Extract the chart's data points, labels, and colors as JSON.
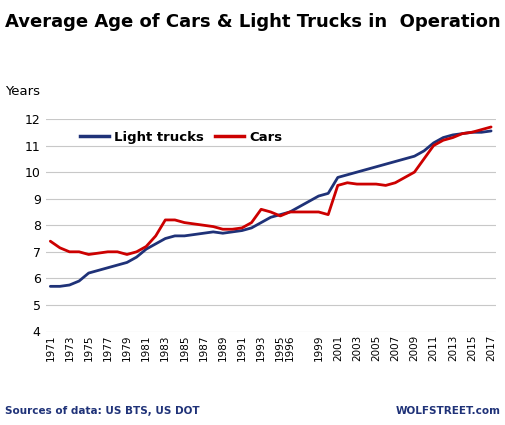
{
  "title": "Average Age of Cars & Light Trucks in  Operation",
  "years_label": "Years",
  "source_left": "Sources of data: US BTS, US DOT",
  "source_right": "WOLFSTREET.com",
  "ylim": [
    4,
    12
  ],
  "yticks": [
    4,
    5,
    6,
    7,
    8,
    9,
    10,
    11,
    12
  ],
  "light_trucks_color": "#1f3278",
  "cars_color": "#cc0000",
  "years": [
    1971,
    1972,
    1973,
    1974,
    1975,
    1976,
    1977,
    1978,
    1979,
    1980,
    1981,
    1982,
    1983,
    1984,
    1985,
    1986,
    1987,
    1988,
    1989,
    1990,
    1991,
    1992,
    1993,
    1994,
    1995,
    1996,
    1997,
    1998,
    1999,
    2000,
    2001,
    2002,
    2003,
    2004,
    2005,
    2006,
    2007,
    2008,
    2009,
    2010,
    2011,
    2012,
    2013,
    2014,
    2015,
    2016,
    2017
  ],
  "light_trucks": [
    5.7,
    5.7,
    5.75,
    5.9,
    6.2,
    6.3,
    6.4,
    6.5,
    6.6,
    6.8,
    7.1,
    7.3,
    7.5,
    7.6,
    7.6,
    7.65,
    7.7,
    7.75,
    7.7,
    7.75,
    7.8,
    7.9,
    8.1,
    8.3,
    8.4,
    8.5,
    8.7,
    8.9,
    9.1,
    9.2,
    9.8,
    9.9,
    10.0,
    10.1,
    10.2,
    10.3,
    10.4,
    10.5,
    10.6,
    10.8,
    11.1,
    11.3,
    11.4,
    11.45,
    11.5,
    11.5,
    11.55
  ],
  "cars": [
    7.4,
    7.15,
    7.0,
    7.0,
    6.9,
    6.95,
    7.0,
    7.0,
    6.9,
    7.0,
    7.2,
    7.6,
    8.2,
    8.2,
    8.1,
    8.05,
    8.0,
    7.95,
    7.85,
    7.85,
    7.9,
    8.1,
    8.6,
    8.5,
    8.35,
    8.5,
    8.5,
    8.5,
    8.5,
    8.4,
    9.5,
    9.6,
    9.55,
    9.55,
    9.55,
    9.5,
    9.6,
    9.8,
    10.0,
    10.5,
    11.0,
    11.2,
    11.3,
    11.45,
    11.5,
    11.6,
    11.7
  ],
  "xtick_labels": [
    "1971",
    "1973",
    "1975",
    "1977",
    "1979",
    "1981",
    "1983",
    "1985",
    "1987",
    "1989",
    "1991",
    "1993",
    "1995",
    "1996",
    "1999",
    "2001",
    "2003",
    "2005",
    "2007",
    "2009",
    "2011",
    "2013",
    "2015",
    "2017"
  ],
  "xtick_positions": [
    1971,
    1973,
    1975,
    1977,
    1979,
    1981,
    1983,
    1985,
    1987,
    1989,
    1991,
    1993,
    1995,
    1996,
    1999,
    2001,
    2003,
    2005,
    2007,
    2009,
    2011,
    2013,
    2015,
    2017
  ],
  "background_color": "#ffffff",
  "grid_color": "#c8c8c8",
  "line_width": 2.0,
  "source_color": "#1f3278",
  "title_fontsize": 13,
  "legend_fontsize": 9.5
}
